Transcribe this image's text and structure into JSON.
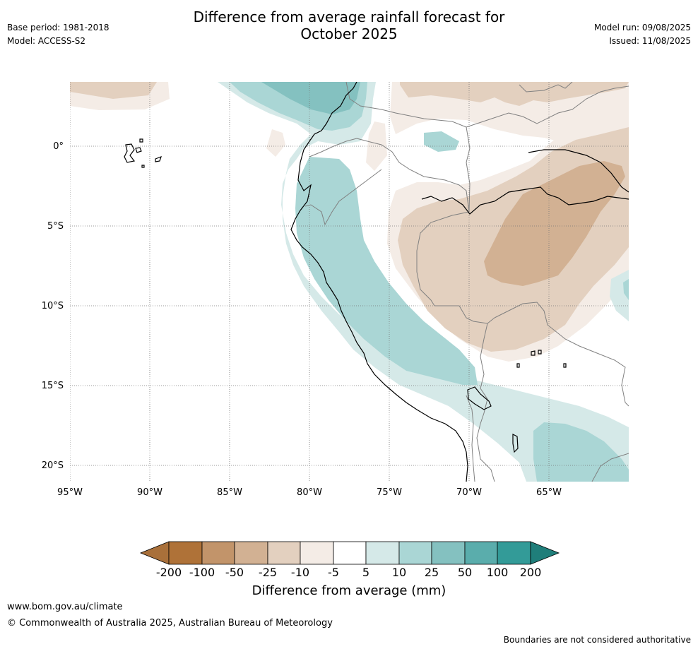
{
  "header": {
    "title_line1": "Difference from average rainfall forecast for",
    "title_line2": "October 2025",
    "base_period": "Base period: 1981-2018",
    "model": "Model: ACCESS-S2",
    "model_run": "Model run: 09/08/2025",
    "issued": "Issued: 11/08/2025"
  },
  "map": {
    "lat_labels": [
      "0°",
      "5°S",
      "10°S",
      "15°S",
      "20°S"
    ],
    "lon_labels": [
      "95°W",
      "90°W",
      "85°W",
      "80°W",
      "75°W",
      "70°W",
      "65°W"
    ],
    "colors": {
      "c_m200": "#a9703a",
      "c_m100": "#c2946a",
      "c_m50": "#d2b193",
      "c_m25": "#e3d0bf",
      "c_m10": "#f4ece6",
      "c_neutral": "#ffffff",
      "c_5": "#d5e9e8",
      "c_10": "#aad6d5",
      "c_25": "#84c1c0",
      "c_50": "#5aadac",
      "c_100": "#339b98",
      "c_200": "#1f7e7a"
    }
  },
  "colorbar": {
    "ticks": [
      "-200",
      "-100",
      "-50",
      "-25",
      "-10",
      "-5",
      "5",
      "10",
      "25",
      "50",
      "100",
      "200"
    ],
    "title": "Difference from average (mm)"
  },
  "footer": {
    "url": "www.bom.gov.au/climate",
    "copyright": "© Commonwealth of Australia 2025, Australian Bureau of Meteorology",
    "note": "Boundaries are not considered authoritative"
  }
}
